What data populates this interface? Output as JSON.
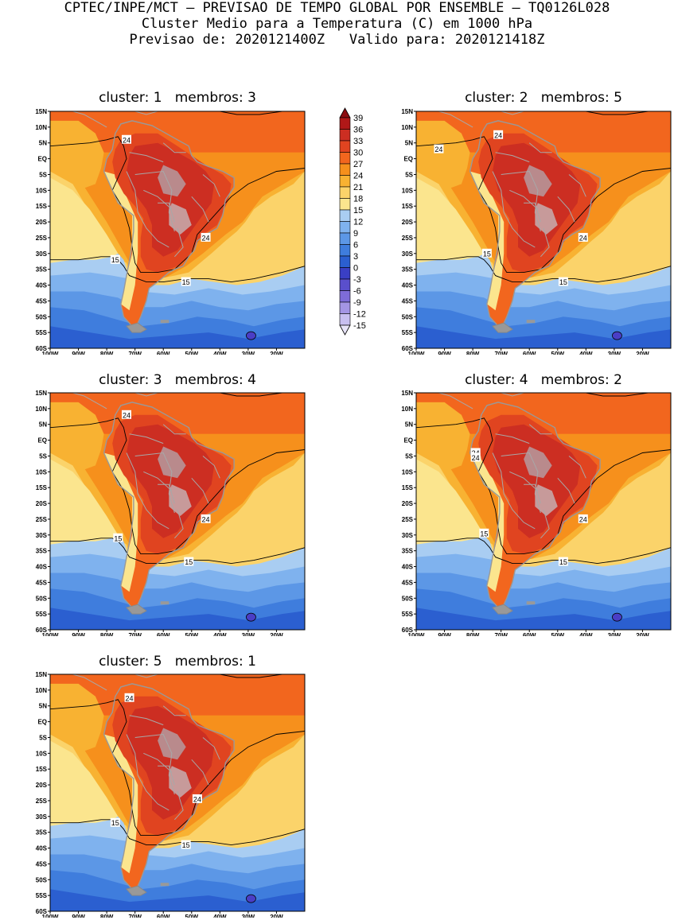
{
  "header": {
    "line1": "CPTEC/INPE/MCT – PREVISAO DE TEMPO GLOBAL POR ENSEMBLE – TQ0126L028",
    "line2": "Cluster Medio para a Temperatura (C) em 1000 hPa",
    "line3": "Previsao de: 2020121400Z   Valido para: 2020121418Z"
  },
  "axes": {
    "lat_labels": [
      "15N",
      "10N",
      "5N",
      "EQ",
      "5S",
      "10S",
      "15S",
      "20S",
      "25S",
      "30S",
      "35S",
      "40S",
      "45S",
      "50S",
      "55S",
      "60S"
    ],
    "lon_labels": [
      "100W",
      "90W",
      "80W",
      "70W",
      "60W",
      "50W",
      "40W",
      "30W",
      "20W"
    ]
  },
  "colorbar": {
    "labels": [
      "39",
      "36",
      "33",
      "30",
      "27",
      "24",
      "21",
      "18",
      "15",
      "12",
      "9",
      "6",
      "3",
      "0",
      "-3",
      "-6",
      "-9",
      "-12",
      "-15"
    ],
    "colors": [
      "#8c0c10",
      "#b01818",
      "#cc2e22",
      "#e04420",
      "#f2661e",
      "#f6901c",
      "#f8b232",
      "#fbd36a",
      "#fbe58e",
      "#a9cdf2",
      "#7fb2ee",
      "#5c97e6",
      "#3f7ddd",
      "#2b5fd0",
      "#3a3fc4",
      "#5a4fcc",
      "#7e6cd8",
      "#a495e4",
      "#c8bff0",
      "#e8e4f8"
    ]
  },
  "panels": [
    {
      "title": "cluster: 1   membros: 3",
      "labels": {
        "c24a": "24",
        "c24b": "24",
        "c15a": "15",
        "c15b": "15"
      }
    },
    {
      "title": "cluster: 2   membros: 5",
      "labels": {
        "c24a": "24",
        "c24b": "24",
        "c24c": "24",
        "c15a": "15",
        "c15b": "15"
      }
    },
    {
      "title": "cluster: 3   membros: 4",
      "labels": {
        "c24a": "24",
        "c24b": "24",
        "c15a": "15",
        "c15b": "15"
      }
    },
    {
      "title": "cluster: 4   membros: 2",
      "labels": {
        "c24a": "24",
        "c24b": "24",
        "c24c": "24",
        "c15a": "15",
        "c15b": "15"
      }
    },
    {
      "title": "cluster: 5   membros: 1",
      "labels": {
        "c24a": "24",
        "c24b": "24",
        "c15a": "15",
        "c15b": "15"
      }
    }
  ]
}
